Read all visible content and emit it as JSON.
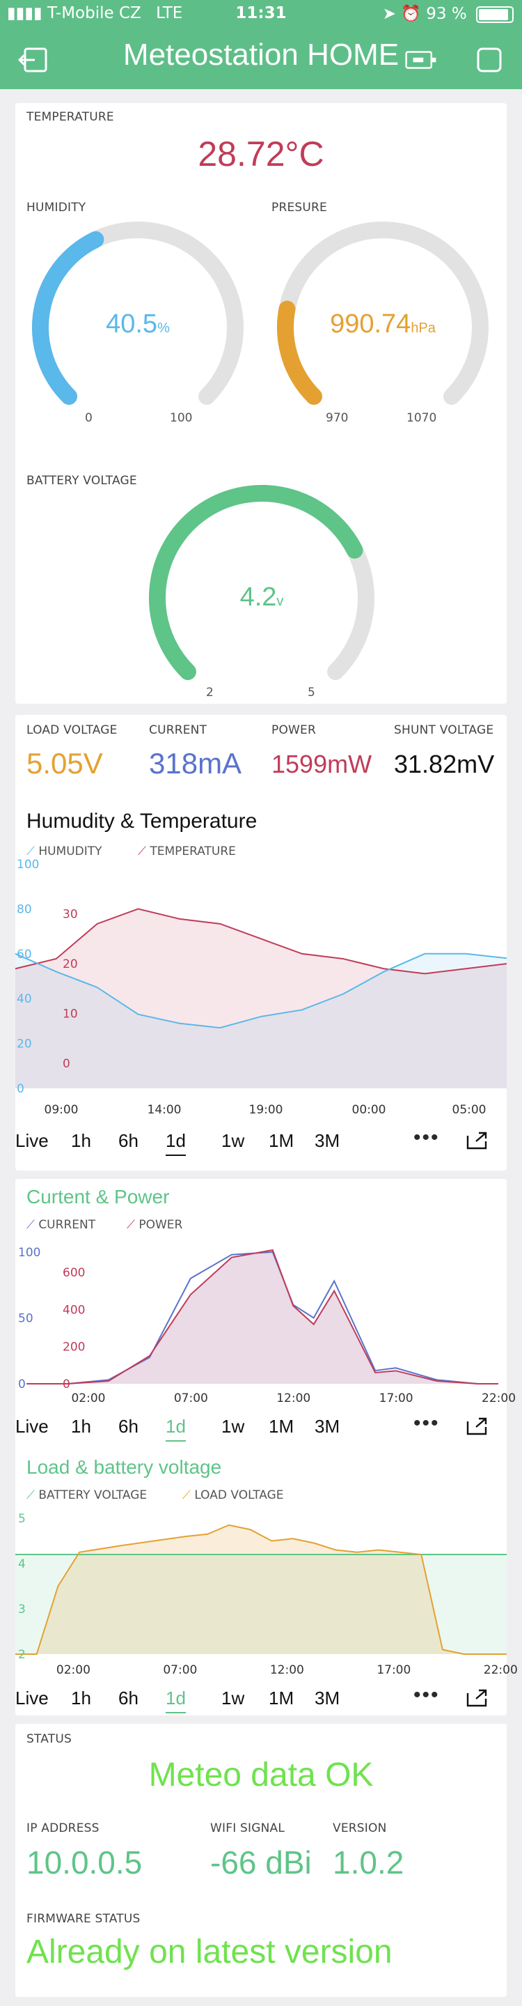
{
  "status_bar": {
    "carrier": "T-Mobile CZ",
    "network": "LTE",
    "time": "11:31",
    "battery": "93 %"
  },
  "header": {
    "title": "Meteostation HOME"
  },
  "temperature": {
    "label": "TEMPERATURE",
    "value": "28.72°C",
    "color": "#c03c58"
  },
  "humidity": {
    "label": "HUMIDITY",
    "value": "40.5",
    "unit": "%",
    "min": "0",
    "max": "100",
    "fraction": 0.405,
    "color": "#5ab8ea"
  },
  "pressure": {
    "label": "PRESURE",
    "value": "990.74",
    "unit": "hPa",
    "min": "970",
    "max": "1070",
    "fraction": 0.207,
    "color": "#e4a131"
  },
  "battery": {
    "label": "BATTERY VOLTAGE",
    "value": "4.2",
    "unit": "v",
    "min": "2",
    "max": "5",
    "fraction": 0.733,
    "color": "#5ec488"
  },
  "power_values": [
    {
      "label": "LOAD VOLTAGE",
      "value": "5.05V",
      "color": "#e4a131"
    },
    {
      "label": "CURRENT",
      "value": "318mA",
      "color": "#5a72cc"
    },
    {
      "label": "POWER",
      "value": "1599mW",
      "color": "#c03c58"
    },
    {
      "label": "SHUNT VOLTAGE",
      "value": "31.82mV",
      "color": "#111111"
    }
  ],
  "period_tabs": [
    "Live",
    "1h",
    "6h",
    "1d",
    "1w",
    "1M",
    "3M"
  ],
  "active_tab": "1d",
  "more_label": "•••",
  "chart_data": [
    {
      "type": "line",
      "title": "Humudity & Temperature",
      "title_color": "#111111",
      "series": [
        {
          "name": "HUMUDITY",
          "color": "#5ab8ea",
          "x": [
            "06:00",
            "08:00",
            "10:00",
            "12:00",
            "14:00",
            "16:00",
            "18:00",
            "20:00",
            "22:00",
            "00:00",
            "02:00",
            "04:00",
            "06:00"
          ],
          "values": [
            60,
            52,
            45,
            33,
            29,
            27,
            32,
            35,
            42,
            52,
            60,
            60,
            58
          ]
        },
        {
          "name": "TEMPERATURE",
          "color": "#c03c58",
          "x": [
            "06:00",
            "08:00",
            "10:00",
            "12:00",
            "14:00",
            "16:00",
            "18:00",
            "20:00",
            "22:00",
            "00:00",
            "02:00",
            "04:00",
            "06:00"
          ],
          "values": [
            19,
            21,
            28,
            31,
            29,
            28,
            25,
            22,
            21,
            19,
            18,
            19,
            20
          ]
        }
      ],
      "xticks": [
        "09:00",
        "14:00",
        "19:00",
        "00:00",
        "05:00"
      ],
      "left_ticks": [
        "100",
        "80",
        "60",
        "40",
        "20",
        "0"
      ],
      "right_ticks": [
        "30",
        "20",
        "10",
        "0"
      ],
      "ylim_left": [
        0,
        100
      ],
      "ylim_right": [
        -5,
        40
      ]
    },
    {
      "type": "line",
      "title": "Curtent & Power",
      "title_color": "#5ec488",
      "series": [
        {
          "name": "CURRENT",
          "color": "#5a72cc",
          "x": [
            "00:00",
            "02:00",
            "04:00",
            "06:00",
            "08:00",
            "10:00",
            "12:00",
            "13:00",
            "14:00",
            "15:00",
            "17:00",
            "18:00",
            "20:00",
            "22:00",
            "23:00"
          ],
          "values": [
            0,
            0,
            3,
            20,
            80,
            98,
            100,
            60,
            50,
            78,
            10,
            12,
            3,
            0,
            0
          ]
        },
        {
          "name": "POWER",
          "color": "#c03c58",
          "x": [
            "00:00",
            "02:00",
            "04:00",
            "06:00",
            "08:00",
            "10:00",
            "12:00",
            "13:00",
            "14:00",
            "15:00",
            "17:00",
            "18:00",
            "20:00",
            "22:00",
            "23:00"
          ],
          "values": [
            0,
            0,
            15,
            150,
            480,
            680,
            720,
            420,
            320,
            500,
            60,
            70,
            15,
            0,
            0
          ]
        }
      ],
      "xticks": [
        "02:00",
        "07:00",
        "12:00",
        "17:00",
        "22:00"
      ],
      "left_ticks": [
        "100",
        "50",
        "0"
      ],
      "right_ticks": [
        "600",
        "400",
        "200",
        "0"
      ],
      "ylim_left": [
        0,
        110
      ],
      "ylim_right": [
        0,
        780
      ]
    },
    {
      "type": "line",
      "title": "Load & battery voltage",
      "title_color": "#5ec488",
      "series": [
        {
          "name": "BATTERY VOLTAGE",
          "color": "#5ec488",
          "x": [
            "00:00",
            "23:00"
          ],
          "values": [
            4.2,
            4.2
          ]
        },
        {
          "name": "LOAD VOLTAGE",
          "color": "#e4a131",
          "x": [
            "00:00",
            "01:00",
            "02:00",
            "03:00",
            "05:00",
            "08:00",
            "09:00",
            "10:00",
            "11:00",
            "12:00",
            "13:00",
            "14:00",
            "15:00",
            "16:00",
            "17:00",
            "18:00",
            "19:00",
            "20:00",
            "21:00",
            "23:00"
          ],
          "values": [
            2.0,
            2.0,
            3.5,
            4.25,
            4.4,
            4.6,
            4.65,
            4.85,
            4.75,
            4.5,
            4.55,
            4.45,
            4.3,
            4.25,
            4.3,
            4.25,
            4.2,
            2.1,
            2.0,
            2.0
          ]
        }
      ],
      "xticks": [
        "02:00",
        "07:00",
        "12:00",
        "17:00",
        "22:00"
      ],
      "left_ticks": [
        "5",
        "4",
        "3",
        "2"
      ],
      "ylim": [
        2,
        5.2
      ]
    }
  ],
  "status": {
    "label": "STATUS",
    "value": "Meteo data OK",
    "color": "#6fe24e"
  },
  "network": [
    {
      "label": "IP ADDRESS",
      "value": "10.0.0.5"
    },
    {
      "label": "WIFI SIGNAL",
      "value": "-66 dBi"
    },
    {
      "label": "VERSION",
      "value": "1.0.2"
    }
  ],
  "firmware": {
    "label": "FIRMWARE STATUS",
    "value": "Already on latest version",
    "color": "#6fe24e"
  },
  "accent": "#5ebe88"
}
